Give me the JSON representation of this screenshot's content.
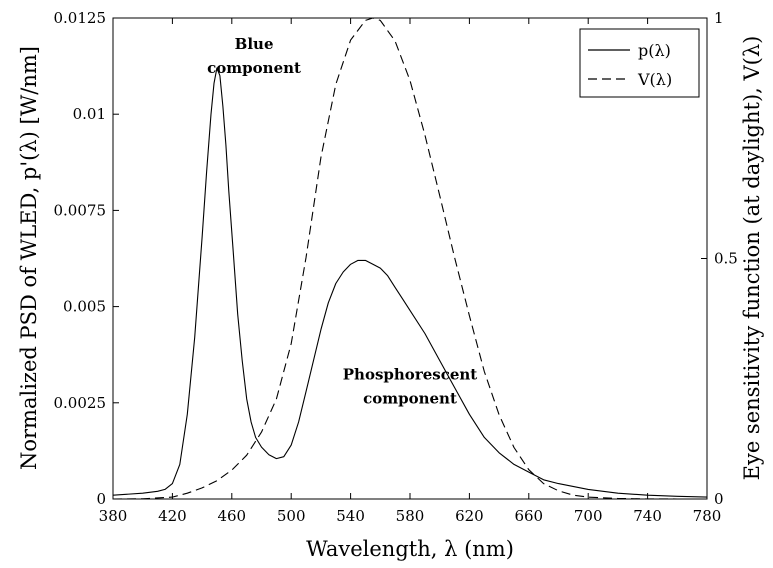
{
  "chart_data": {
    "type": "line",
    "xlabel": "Wavelength, λ (nm)",
    "ylabel_left": "Normalized PSD of WLED, p'(λ) [W/nm]",
    "ylabel_right": "Eye sensitivity function (at daylight), V(λ)",
    "xlim": [
      380,
      780
    ],
    "ylim_left": [
      0,
      0.0125
    ],
    "ylim_right": [
      0,
      1
    ],
    "x_ticks": [
      380,
      420,
      460,
      500,
      540,
      580,
      620,
      660,
      700,
      740,
      780
    ],
    "y_ticks_left": [
      0,
      0.0025,
      0.005,
      0.0075,
      0.01,
      0.0125
    ],
    "y_ticks_left_labels": [
      "0",
      "0.0025",
      "0.005",
      "0.0075",
      "0.01",
      "0.0125"
    ],
    "y_ticks_right": [
      0,
      0.5,
      1
    ],
    "y_ticks_right_labels": [
      "0",
      "0.5",
      "1"
    ],
    "grid": false,
    "legend": {
      "placement": "top-right",
      "entries": [
        {
          "label": "p(λ)",
          "style": "solid"
        },
        {
          "label": "V(λ)",
          "style": "dashed"
        }
      ]
    },
    "annotations": [
      {
        "lines": [
          "Blue",
          "component"
        ],
        "x": 475,
        "y": 0.0117
      },
      {
        "lines": [
          "Phosphorescent",
          "component"
        ],
        "x": 580,
        "y": 0.0031
      }
    ],
    "series": [
      {
        "name": "p(λ)",
        "axis": "left",
        "style": "solid",
        "x": [
          380,
          400,
          410,
          415,
          420,
          425,
          430,
          435,
          440,
          443,
          446,
          448,
          450,
          452,
          454,
          456,
          458,
          461,
          464,
          467,
          470,
          473,
          476,
          480,
          485,
          490,
          495,
          500,
          505,
          510,
          515,
          520,
          525,
          530,
          535,
          540,
          545,
          550,
          555,
          560,
          565,
          570,
          575,
          580,
          590,
          600,
          610,
          620,
          630,
          640,
          650,
          660,
          670,
          680,
          700,
          720,
          740,
          760,
          780
        ],
        "y": [
          0.0001,
          0.00015,
          0.0002,
          0.00025,
          0.0004,
          0.0009,
          0.0022,
          0.0042,
          0.0068,
          0.0085,
          0.01,
          0.0108,
          0.0112,
          0.011,
          0.0102,
          0.0092,
          0.008,
          0.0064,
          0.0048,
          0.0036,
          0.0026,
          0.002,
          0.0016,
          0.00135,
          0.00115,
          0.00105,
          0.0011,
          0.0014,
          0.002,
          0.0028,
          0.0036,
          0.0044,
          0.0051,
          0.0056,
          0.0059,
          0.0061,
          0.0062,
          0.0062,
          0.0061,
          0.006,
          0.0058,
          0.0055,
          0.0052,
          0.0049,
          0.0043,
          0.0036,
          0.0029,
          0.0022,
          0.0016,
          0.0012,
          0.0009,
          0.0007,
          0.0005,
          0.0004,
          0.00025,
          0.00015,
          0.0001,
          7e-05,
          5e-05
        ]
      },
      {
        "name": "V(λ)",
        "axis": "right",
        "style": "dashed",
        "x": [
          380,
          400,
          420,
          430,
          440,
          450,
          460,
          470,
          480,
          490,
          500,
          510,
          520,
          530,
          540,
          550,
          555,
          560,
          570,
          580,
          590,
          600,
          610,
          620,
          630,
          640,
          650,
          660,
          670,
          680,
          690,
          700,
          720,
          740,
          760,
          780
        ],
        "y": [
          0.0,
          0.0004,
          0.004,
          0.012,
          0.023,
          0.038,
          0.06,
          0.091,
          0.139,
          0.208,
          0.323,
          0.503,
          0.71,
          0.862,
          0.954,
          0.995,
          1.0,
          0.995,
          0.952,
          0.87,
          0.757,
          0.631,
          0.503,
          0.381,
          0.265,
          0.175,
          0.107,
          0.061,
          0.032,
          0.017,
          0.008,
          0.004,
          0.001,
          0.0002,
          6e-05,
          0.0
        ]
      }
    ]
  }
}
